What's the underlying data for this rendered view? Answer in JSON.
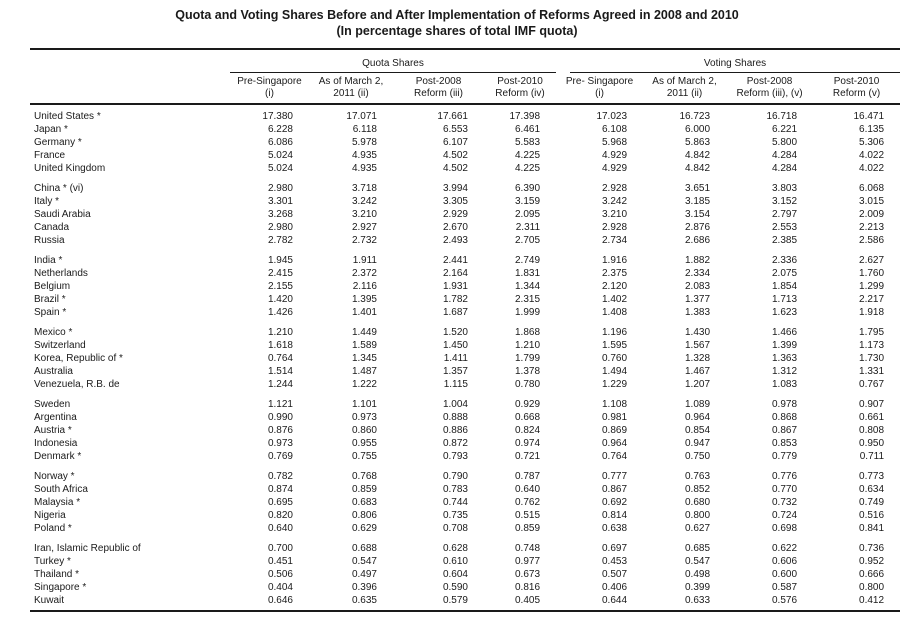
{
  "title": "Quota and Voting Shares Before and After Implementation of Reforms Agreed in 2008 and 2010",
  "subtitle": "(In percentage shares of total IMF quota)",
  "table": {
    "group_headers": [
      {
        "label": "Quota Shares",
        "span": 4
      },
      {
        "label": "Voting Shares",
        "span": 4
      }
    ],
    "column_headers": [
      "Pre-Singapore\n(i)",
      "As of March 2,\n2011 (ii)",
      "Post-2008\nReform (iii)",
      "Post-2010\nReform (iv)",
      "Pre- Singapore\n(i)",
      "As of March 2,\n2011 (ii)",
      "Post-2008\nReform (iii), (v)",
      "Post-2010\nReform (v)"
    ],
    "groups": [
      {
        "rows": [
          {
            "country": "United States *",
            "values": [
              "17.380",
              "17.071",
              "17.661",
              "17.398",
              "17.023",
              "16.723",
              "16.718",
              "16.471"
            ]
          },
          {
            "country": "Japan *",
            "values": [
              "6.228",
              "6.118",
              "6.553",
              "6.461",
              "6.108",
              "6.000",
              "6.221",
              "6.135"
            ]
          },
          {
            "country": "Germany *",
            "values": [
              "6.086",
              "5.978",
              "6.107",
              "5.583",
              "5.968",
              "5.863",
              "5.800",
              "5.306"
            ]
          },
          {
            "country": "France",
            "values": [
              "5.024",
              "4.935",
              "4.502",
              "4.225",
              "4.929",
              "4.842",
              "4.284",
              "4.022"
            ]
          },
          {
            "country": "United Kingdom",
            "values": [
              "5.024",
              "4.935",
              "4.502",
              "4.225",
              "4.929",
              "4.842",
              "4.284",
              "4.022"
            ]
          }
        ]
      },
      {
        "rows": [
          {
            "country": "China * (vi)",
            "values": [
              "2.980",
              "3.718",
              "3.994",
              "6.390",
              "2.928",
              "3.651",
              "3.803",
              "6.068"
            ]
          },
          {
            "country": "Italy *",
            "values": [
              "3.301",
              "3.242",
              "3.305",
              "3.159",
              "3.242",
              "3.185",
              "3.152",
              "3.015"
            ]
          },
          {
            "country": "Saudi Arabia",
            "values": [
              "3.268",
              "3.210",
              "2.929",
              "2.095",
              "3.210",
              "3.154",
              "2.797",
              "2.009"
            ]
          },
          {
            "country": "Canada",
            "values": [
              "2.980",
              "2.927",
              "2.670",
              "2.311",
              "2.928",
              "2.876",
              "2.553",
              "2.213"
            ]
          },
          {
            "country": "Russia",
            "values": [
              "2.782",
              "2.732",
              "2.493",
              "2.705",
              "2.734",
              "2.686",
              "2.385",
              "2.586"
            ]
          }
        ]
      },
      {
        "rows": [
          {
            "country": "India *",
            "values": [
              "1.945",
              "1.911",
              "2.441",
              "2.749",
              "1.916",
              "1.882",
              "2.336",
              "2.627"
            ]
          },
          {
            "country": "Netherlands",
            "values": [
              "2.415",
              "2.372",
              "2.164",
              "1.831",
              "2.375",
              "2.334",
              "2.075",
              "1.760"
            ]
          },
          {
            "country": "Belgium",
            "values": [
              "2.155",
              "2.116",
              "1.931",
              "1.344",
              "2.120",
              "2.083",
              "1.854",
              "1.299"
            ]
          },
          {
            "country": "Brazil *",
            "values": [
              "1.420",
              "1.395",
              "1.782",
              "2.315",
              "1.402",
              "1.377",
              "1.713",
              "2.217"
            ]
          },
          {
            "country": "Spain *",
            "values": [
              "1.426",
              "1.401",
              "1.687",
              "1.999",
              "1.408",
              "1.383",
              "1.623",
              "1.918"
            ]
          }
        ]
      },
      {
        "rows": [
          {
            "country": "Mexico *",
            "values": [
              "1.210",
              "1.449",
              "1.520",
              "1.868",
              "1.196",
              "1.430",
              "1.466",
              "1.795"
            ]
          },
          {
            "country": "Switzerland",
            "values": [
              "1.618",
              "1.589",
              "1.450",
              "1.210",
              "1.595",
              "1.567",
              "1.399",
              "1.173"
            ]
          },
          {
            "country": "Korea, Republic of *",
            "values": [
              "0.764",
              "1.345",
              "1.411",
              "1.799",
              "0.760",
              "1.328",
              "1.363",
              "1.730"
            ]
          },
          {
            "country": "Australia",
            "values": [
              "1.514",
              "1.487",
              "1.357",
              "1.378",
              "1.494",
              "1.467",
              "1.312",
              "1.331"
            ]
          },
          {
            "country": "Venezuela, R.B. de",
            "values": [
              "1.244",
              "1.222",
              "1.115",
              "0.780",
              "1.229",
              "1.207",
              "1.083",
              "0.767"
            ]
          }
        ]
      },
      {
        "rows": [
          {
            "country": "Sweden",
            "values": [
              "1.121",
              "1.101",
              "1.004",
              "0.929",
              "1.108",
              "1.089",
              "0.978",
              "0.907"
            ]
          },
          {
            "country": "Argentina",
            "values": [
              "0.990",
              "0.973",
              "0.888",
              "0.668",
              "0.981",
              "0.964",
              "0.868",
              "0.661"
            ]
          },
          {
            "country": "Austria *",
            "values": [
              "0.876",
              "0.860",
              "0.886",
              "0.824",
              "0.869",
              "0.854",
              "0.867",
              "0.808"
            ]
          },
          {
            "country": "Indonesia",
            "values": [
              "0.973",
              "0.955",
              "0.872",
              "0.974",
              "0.964",
              "0.947",
              "0.853",
              "0.950"
            ]
          },
          {
            "country": "Denmark *",
            "values": [
              "0.769",
              "0.755",
              "0.793",
              "0.721",
              "0.764",
              "0.750",
              "0.779",
              "0.711"
            ]
          }
        ]
      },
      {
        "rows": [
          {
            "country": "Norway *",
            "values": [
              "0.782",
              "0.768",
              "0.790",
              "0.787",
              "0.777",
              "0.763",
              "0.776",
              "0.773"
            ]
          },
          {
            "country": "South Africa",
            "values": [
              "0.874",
              "0.859",
              "0.783",
              "0.640",
              "0.867",
              "0.852",
              "0.770",
              "0.634"
            ]
          },
          {
            "country": "Malaysia *",
            "values": [
              "0.695",
              "0.683",
              "0.744",
              "0.762",
              "0.692",
              "0.680",
              "0.732",
              "0.749"
            ]
          },
          {
            "country": "Nigeria",
            "values": [
              "0.820",
              "0.806",
              "0.735",
              "0.515",
              "0.814",
              "0.800",
              "0.724",
              "0.516"
            ]
          },
          {
            "country": "Poland *",
            "values": [
              "0.640",
              "0.629",
              "0.708",
              "0.859",
              "0.638",
              "0.627",
              "0.698",
              "0.841"
            ]
          }
        ]
      },
      {
        "rows": [
          {
            "country": "Iran, Islamic Republic of",
            "values": [
              "0.700",
              "0.688",
              "0.628",
              "0.748",
              "0.697",
              "0.685",
              "0.622",
              "0.736"
            ]
          },
          {
            "country": "Turkey *",
            "values": [
              "0.451",
              "0.547",
              "0.610",
              "0.977",
              "0.453",
              "0.547",
              "0.606",
              "0.952"
            ]
          },
          {
            "country": "Thailand *",
            "values": [
              "0.506",
              "0.497",
              "0.604",
              "0.673",
              "0.507",
              "0.498",
              "0.600",
              "0.666"
            ]
          },
          {
            "country": "Singapore *",
            "values": [
              "0.404",
              "0.396",
              "0.590",
              "0.816",
              "0.406",
              "0.399",
              "0.587",
              "0.800"
            ]
          },
          {
            "country": "Kuwait",
            "values": [
              "0.646",
              "0.635",
              "0.579",
              "0.405",
              "0.644",
              "0.633",
              "0.576",
              "0.412"
            ]
          }
        ]
      }
    ]
  }
}
